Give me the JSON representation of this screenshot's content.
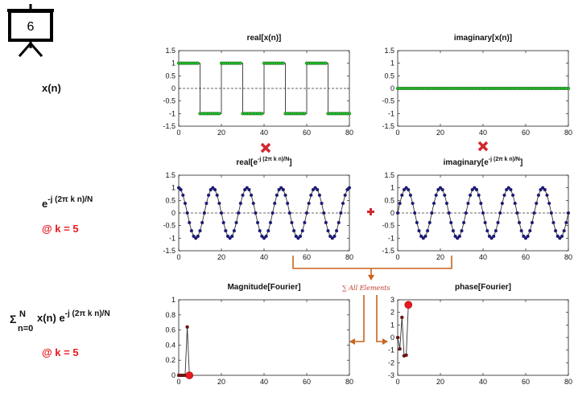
{
  "slide": {
    "number": "6"
  },
  "rows": [
    {
      "label_main": "x(n)"
    },
    {
      "label_main": "e",
      "label_sup": "-j (2π k n)/N",
      "label_k": "@ k = 5"
    },
    {
      "label_sigma": "Σ",
      "label_sigma_sup": "N",
      "label_sigma_sub": "n=0",
      "label_main": " x(n) e",
      "label_sup": "-j (2π k n)/N",
      "label_k": "@ k = 5"
    }
  ],
  "connector": {
    "sum_label": "∑ All Elements"
  },
  "colors": {
    "green": "#22c22a",
    "navy": "#1a1a8c",
    "red": "#e8191f",
    "orange": "#c8641e",
    "darkred": "#7a1010"
  },
  "chart_data": [
    {
      "id": "real-x",
      "type": "line",
      "title": "real[x(n)]",
      "xlim": [
        0,
        80
      ],
      "ylim": [
        -1.5,
        1.5
      ],
      "xticks": [
        "0",
        "20",
        "40",
        "60",
        "80"
      ],
      "yticks": [
        "1.5",
        "1",
        "0.5",
        "0",
        "-0.5",
        "-1",
        "-1.5"
      ],
      "series": [
        {
          "color": "#22c22a",
          "kind": "square",
          "x": [
            0,
            1,
            2,
            3,
            4,
            5,
            6,
            7,
            8,
            9,
            10,
            11,
            12,
            13,
            14,
            15,
            16,
            17,
            18,
            19,
            20,
            21,
            22,
            23,
            24,
            25,
            26,
            27,
            28,
            29,
            30,
            31,
            32,
            33,
            34,
            35,
            36,
            37,
            38,
            39,
            40,
            41,
            42,
            43,
            44,
            45,
            46,
            47,
            48,
            49,
            50,
            51,
            52,
            53,
            54,
            55,
            56,
            57,
            58,
            59,
            60,
            61,
            62,
            63,
            64,
            65,
            66,
            67,
            68,
            69,
            70,
            71,
            72,
            73,
            74,
            75,
            76,
            77,
            78,
            79,
            80
          ],
          "y": [
            1,
            1,
            1,
            1,
            1,
            1,
            1,
            1,
            1,
            1,
            -1,
            -1,
            -1,
            -1,
            -1,
            -1,
            -1,
            -1,
            -1,
            -1,
            1,
            1,
            1,
            1,
            1,
            1,
            1,
            1,
            1,
            1,
            -1,
            -1,
            -1,
            -1,
            -1,
            -1,
            -1,
            -1,
            -1,
            -1,
            1,
            1,
            1,
            1,
            1,
            1,
            1,
            1,
            1,
            1,
            -1,
            -1,
            -1,
            -1,
            -1,
            -1,
            -1,
            -1,
            -1,
            -1,
            1,
            1,
            1,
            1,
            1,
            1,
            1,
            1,
            1,
            1,
            -1,
            -1,
            -1,
            -1,
            -1,
            -1,
            -1,
            -1,
            -1,
            -1,
            -1
          ]
        }
      ]
    },
    {
      "id": "imag-x",
      "type": "line",
      "title": "imaginary[x(n)]",
      "xlim": [
        0,
        80
      ],
      "ylim": [
        -1.5,
        1.5
      ],
      "xticks": [
        "0",
        "20",
        "40",
        "60",
        "80"
      ],
      "yticks": [
        "1.5",
        "1",
        "0.5",
        "0",
        "-0.5",
        "-1",
        "-1.5"
      ],
      "series": [
        {
          "color": "#22c22a",
          "kind": "zero",
          "x": [
            0,
            1,
            2,
            3,
            4,
            5,
            6,
            7,
            8,
            9,
            10,
            11,
            12,
            13,
            14,
            15,
            16,
            17,
            18,
            19,
            20,
            21,
            22,
            23,
            24,
            25,
            26,
            27,
            28,
            29,
            30,
            31,
            32,
            33,
            34,
            35,
            36,
            37,
            38,
            39,
            40,
            41,
            42,
            43,
            44,
            45,
            46,
            47,
            48,
            49,
            50,
            51,
            52,
            53,
            54,
            55,
            56,
            57,
            58,
            59,
            60,
            61,
            62,
            63,
            64,
            65,
            66,
            67,
            68,
            69,
            70,
            71,
            72,
            73,
            74,
            75,
            76,
            77,
            78,
            79,
            80
          ],
          "y": [
            0,
            0,
            0,
            0,
            0,
            0,
            0,
            0,
            0,
            0,
            0,
            0,
            0,
            0,
            0,
            0,
            0,
            0,
            0,
            0,
            0,
            0,
            0,
            0,
            0,
            0,
            0,
            0,
            0,
            0,
            0,
            0,
            0,
            0,
            0,
            0,
            0,
            0,
            0,
            0,
            0,
            0,
            0,
            0,
            0,
            0,
            0,
            0,
            0,
            0,
            0,
            0,
            0,
            0,
            0,
            0,
            0,
            0,
            0,
            0,
            0,
            0,
            0,
            0,
            0,
            0,
            0,
            0,
            0,
            0,
            0,
            0,
            0,
            0,
            0,
            0,
            0,
            0,
            0,
            0,
            0
          ]
        }
      ]
    },
    {
      "id": "real-e",
      "type": "line",
      "title": "real[e",
      "title_sup": "-j (2π k n)/N",
      "title_end": "]",
      "xlim": [
        0,
        80
      ],
      "ylim": [
        -1.5,
        1.5
      ],
      "xticks": [
        "0",
        "20",
        "40",
        "60",
        "80"
      ],
      "yticks": [
        "1.5",
        "1",
        "0.5",
        "0",
        "-0.5",
        "-1",
        "-1.5"
      ],
      "series": [
        {
          "color": "#1a1a8c",
          "kind": "cos",
          "k": 5,
          "N": 80,
          "x_max": 80
        }
      ]
    },
    {
      "id": "imag-e",
      "type": "line",
      "title": "imaginary[e",
      "title_sup": "-j (2π k n)/N",
      "title_end": "]",
      "xlim": [
        0,
        80
      ],
      "ylim": [
        -1.5,
        1.5
      ],
      "xticks": [
        "0",
        "20",
        "40",
        "60",
        "80"
      ],
      "yticks": [
        "1.5",
        "1",
        "0.5",
        "0",
        "-0.5",
        "-1",
        "-1.5"
      ],
      "series": [
        {
          "color": "#1a1a8c",
          "kind": "sin",
          "k": 5,
          "N": 80,
          "x_max": 80
        }
      ]
    },
    {
      "id": "magnitude",
      "type": "line",
      "title": "Magnitude[Fourier]",
      "xlim": [
        0,
        80
      ],
      "ylim": [
        0,
        1
      ],
      "xticks": [
        "0",
        "20",
        "40",
        "60",
        "80"
      ],
      "yticks": [
        "1",
        "0.8",
        "0.6",
        "0.4",
        "0.2",
        "0"
      ],
      "series": [
        {
          "color": "#7a1010",
          "x": [
            0,
            1,
            2,
            3,
            4,
            5
          ],
          "y": [
            0,
            0,
            0,
            0,
            0.64,
            0
          ],
          "highlight_x": 5,
          "highlight_y": 0
        }
      ]
    },
    {
      "id": "phase",
      "type": "line",
      "title": "phase[Fourier]",
      "xlim": [
        0,
        80
      ],
      "ylim": [
        -3,
        3
      ],
      "xticks": [
        "0",
        "20",
        "40",
        "60",
        "80"
      ],
      "yticks": [
        "3",
        "2",
        "1",
        "0",
        "-1",
        "-2",
        "-3"
      ],
      "series": [
        {
          "color": "#7a1010",
          "x": [
            0,
            1,
            2,
            3,
            4,
            5
          ],
          "y": [
            0,
            -0.9,
            1.6,
            -1.45,
            -1.4,
            2.6
          ],
          "highlight_x": 5,
          "highlight_y": 2.6
        }
      ]
    }
  ]
}
